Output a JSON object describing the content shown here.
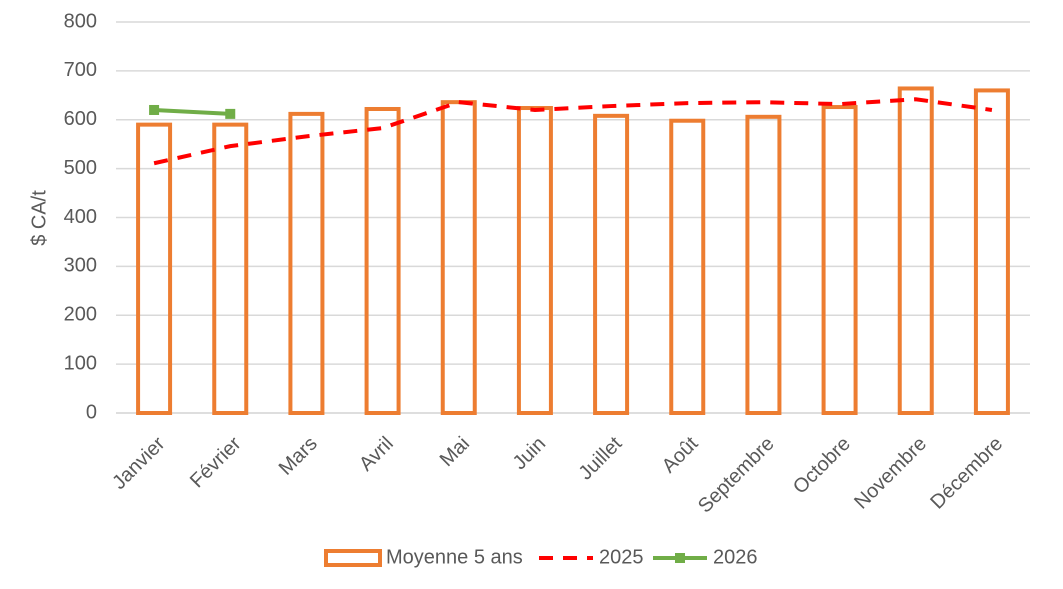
{
  "chart_data": {
    "type": "bar",
    "y_label": "$ CA/t",
    "categories": [
      "Janvier",
      "Février",
      "Mars",
      "Avril",
      "Mai",
      "Juin",
      "Juillet",
      "Août",
      "Septembre",
      "Octobre",
      "Novembre",
      "Décembre"
    ],
    "series": [
      {
        "name": "Moyenne 5 ans",
        "type": "bar",
        "color": "#ed7d31",
        "values": [
          590,
          590,
          612,
          622,
          636,
          624,
          608,
          598,
          606,
          626,
          664,
          660
        ]
      },
      {
        "name": "2025",
        "type": "line",
        "dashed": true,
        "color": "#ff0000",
        "values": [
          511,
          546,
          566,
          583,
          636,
          620,
          628,
          634,
          636,
          632,
          642,
          620
        ]
      },
      {
        "name": "2026",
        "type": "line",
        "markers": true,
        "color": "#70ad47",
        "values": [
          620,
          612,
          null,
          null,
          null,
          null,
          null,
          null,
          null,
          null,
          null,
          null
        ]
      }
    ],
    "ylim": [
      0,
      800
    ],
    "yticks": [
      0,
      100,
      200,
      300,
      400,
      500,
      600,
      700,
      800
    ],
    "grid": true,
    "legend": "bottom"
  }
}
